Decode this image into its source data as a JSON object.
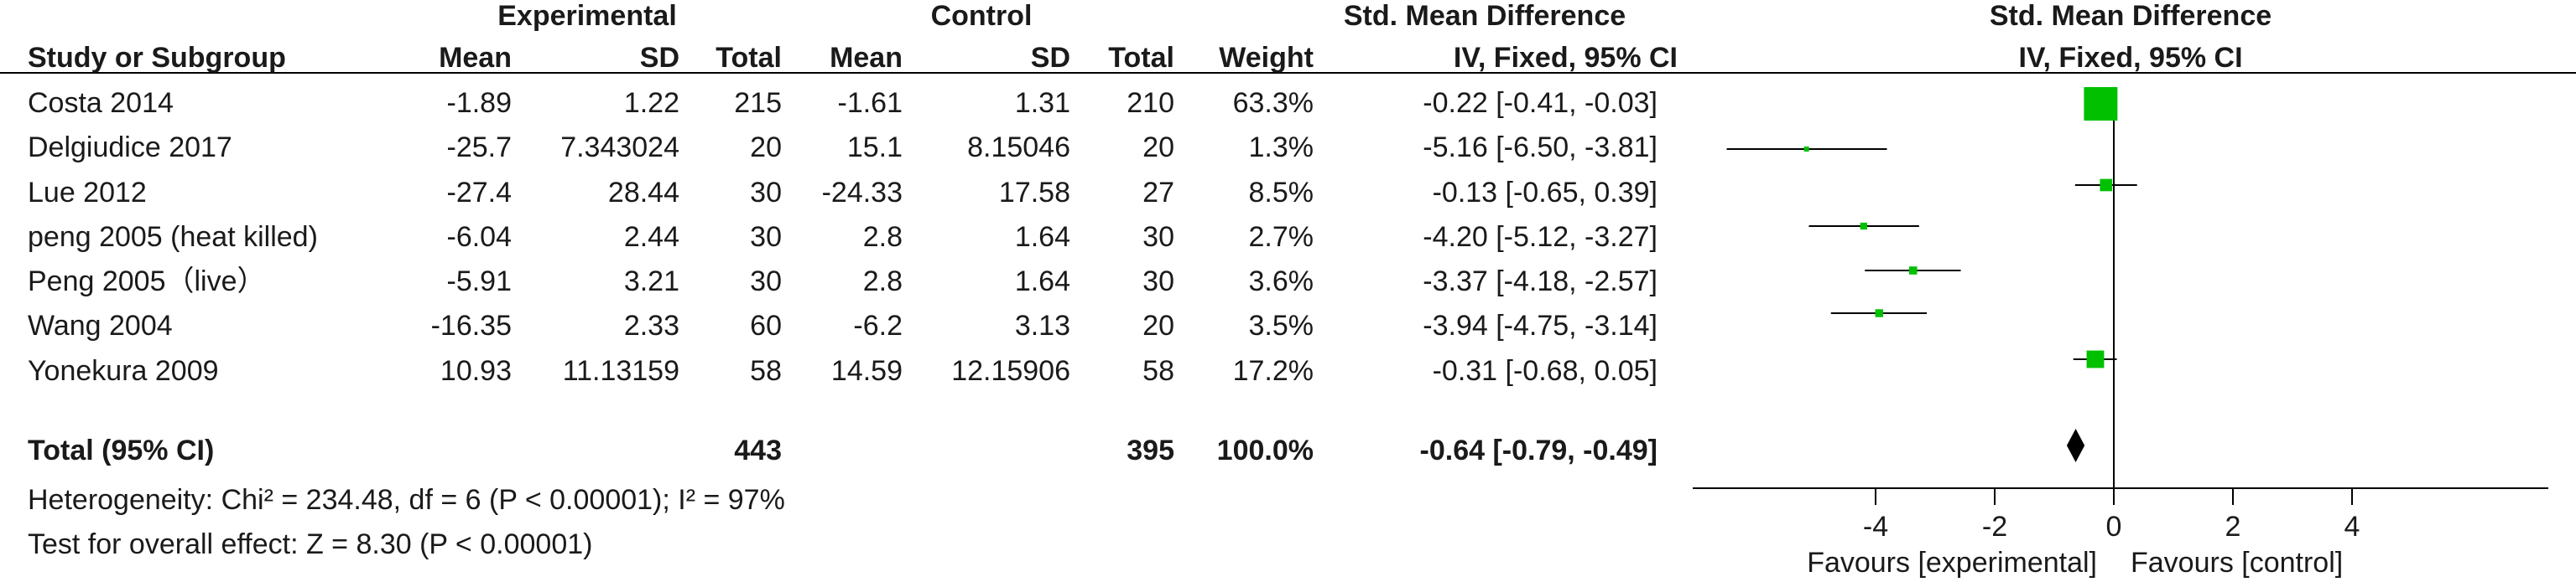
{
  "groups": {
    "experimental": "Experimental",
    "control": "Control",
    "smd": "Std. Mean Difference",
    "plot_title": "Std. Mean Difference"
  },
  "headers": {
    "study": "Study or Subgroup",
    "mean1": "Mean",
    "sd1": "SD",
    "total1": "Total",
    "mean2": "Mean",
    "sd2": "SD",
    "total2": "Total",
    "weight": "Weight",
    "ci": "IV, Fixed, 95% CI",
    "plot_ci": "IV, Fixed, 95% CI"
  },
  "rows": [
    {
      "study": "Costa 2014",
      "mean1": "-1.89",
      "sd1": "1.22",
      "total1": "215",
      "mean2": "-1.61",
      "sd2": "1.31",
      "total2": "210",
      "weight": "63.3%",
      "ci": "-0.22 [-0.41, -0.03]"
    },
    {
      "study": "Delgiudice 2017",
      "mean1": "-25.7",
      "sd1": "7.343024",
      "total1": "20",
      "mean2": "15.1",
      "sd2": "8.15046",
      "total2": "20",
      "weight": "1.3%",
      "ci": "-5.16 [-6.50, -3.81]"
    },
    {
      "study": "Lue 2012",
      "mean1": "-27.4",
      "sd1": "28.44",
      "total1": "30",
      "mean2": "-24.33",
      "sd2": "17.58",
      "total2": "27",
      "weight": "8.5%",
      "ci": "-0.13 [-0.65, 0.39]"
    },
    {
      "study": "peng 2005 (heat killed)",
      "mean1": "-6.04",
      "sd1": "2.44",
      "total1": "30",
      "mean2": "2.8",
      "sd2": "1.64",
      "total2": "30",
      "weight": "2.7%",
      "ci": "-4.20 [-5.12, -3.27]"
    },
    {
      "study": "Peng 2005（live）",
      "mean1": "-5.91",
      "sd1": "3.21",
      "total1": "30",
      "mean2": "2.8",
      "sd2": "1.64",
      "total2": "30",
      "weight": "3.6%",
      "ci": "-3.37 [-4.18, -2.57]"
    },
    {
      "study": "Wang 2004",
      "mean1": "-16.35",
      "sd1": "2.33",
      "total1": "60",
      "mean2": "-6.2",
      "sd2": "3.13",
      "total2": "20",
      "weight": "3.5%",
      "ci": "-3.94 [-4.75, -3.14]"
    },
    {
      "study": "Yonekura 2009",
      "mean1": "10.93",
      "sd1": "11.13159",
      "total1": "58",
      "mean2": "14.59",
      "sd2": "12.15906",
      "total2": "58",
      "weight": "17.2%",
      "ci": "-0.31 [-0.68, 0.05]"
    }
  ],
  "total": {
    "label": "Total (95% CI)",
    "total1": "443",
    "total2": "395",
    "weight": "100.0%",
    "ci": "-0.64 [-0.79, -0.49]"
  },
  "heterogeneity": "Heterogeneity: Chi² = 234.48, df = 6 (P < 0.00001); I² = 97%",
  "overall_effect": "Test for overall effect: Z = 8.30 (P < 0.00001)",
  "axis": {
    "favours_left": "Favours [experimental]",
    "favours_right": "Favours [control]"
  },
  "colors": {
    "marker": "#00c000",
    "line": "#000000",
    "text": "#1a1a1a"
  },
  "chart_data": {
    "type": "scatter",
    "subtype": "forest-plot",
    "title": "Std. Mean Difference",
    "subtitle": "IV, Fixed, 95% CI",
    "xlim": [
      -6.3,
      3.9
    ],
    "xticks": [
      -4,
      -2,
      0,
      2,
      4
    ],
    "categories": [
      "Costa 2014",
      "Delgiudice 2017",
      "Lue 2012",
      "peng 2005 (heat killed)",
      "Peng 2005（live）",
      "Wang 2004",
      "Yonekura 2009"
    ],
    "estimates": [
      -0.22,
      -5.16,
      -0.13,
      -4.2,
      -3.37,
      -3.94,
      -0.31
    ],
    "lower": [
      -0.41,
      -6.5,
      -0.65,
      -5.12,
      -4.18,
      -4.75,
      -0.68
    ],
    "upper": [
      -0.03,
      -3.81,
      0.39,
      -3.27,
      -2.57,
      -3.14,
      0.05
    ],
    "weights": [
      63.3,
      1.3,
      8.5,
      2.7,
      3.6,
      3.5,
      17.2
    ],
    "pooled": {
      "estimate": -0.64,
      "lower": -0.79,
      "upper": -0.49
    }
  }
}
